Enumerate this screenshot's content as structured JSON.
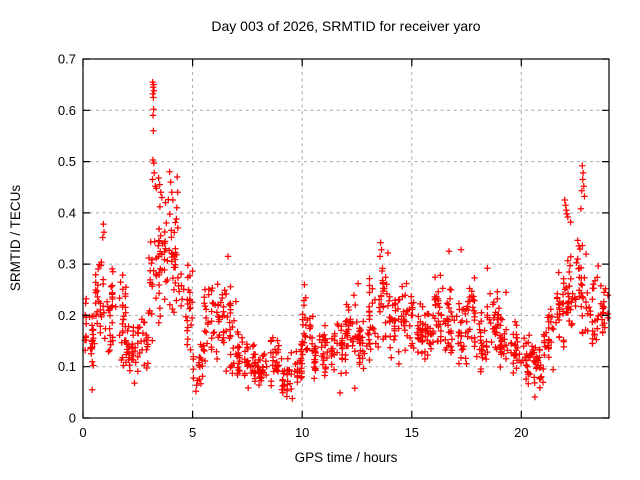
{
  "title": "Day 003 of 2026, SRMTID for receiver yaro",
  "chart_data": {
    "type": "scatter",
    "title": "Day 003 of 2026, SRMTID for receiver yaro",
    "xlabel": "GPS time / hours",
    "ylabel": "SRMTID / TECUs",
    "xlim": [
      0,
      24
    ],
    "ylim": [
      0,
      0.7
    ],
    "xticks": [
      0,
      5,
      10,
      15,
      20
    ],
    "yticks": [
      0,
      0.1,
      0.2,
      0.3,
      0.4,
      0.5,
      0.6,
      0.7
    ],
    "grid": true,
    "legend": "none",
    "marker": "plus",
    "marker_color": "#ff0000",
    "series_name": "SRMTID",
    "seed": 42,
    "distribution_bins": {
      "bin_width_hours": 0.5,
      "description": "dense scatter mass per half-hour bin: [y_min, y_max, point_count]",
      "bins": [
        [
          0.08,
          0.26,
          30
        ],
        [
          0.12,
          0.33,
          28
        ],
        [
          0.12,
          0.3,
          28
        ],
        [
          0.09,
          0.3,
          28
        ],
        [
          0.07,
          0.19,
          26
        ],
        [
          0.08,
          0.22,
          26
        ],
        [
          0.13,
          0.42,
          28
        ],
        [
          0.17,
          0.45,
          28
        ],
        [
          0.18,
          0.4,
          30
        ],
        [
          0.1,
          0.31,
          24
        ],
        [
          0.05,
          0.16,
          22
        ],
        [
          0.1,
          0.3,
          26
        ],
        [
          0.1,
          0.29,
          26
        ],
        [
          0.08,
          0.27,
          26
        ],
        [
          0.06,
          0.17,
          26
        ],
        [
          0.05,
          0.15,
          26
        ],
        [
          0.05,
          0.14,
          26
        ],
        [
          0.06,
          0.16,
          26
        ],
        [
          0.04,
          0.12,
          26
        ],
        [
          0.05,
          0.16,
          26
        ],
        [
          0.08,
          0.25,
          28
        ],
        [
          0.07,
          0.17,
          26
        ],
        [
          0.07,
          0.19,
          26
        ],
        [
          0.08,
          0.21,
          26
        ],
        [
          0.1,
          0.25,
          26
        ],
        [
          0.08,
          0.2,
          26
        ],
        [
          0.1,
          0.28,
          26
        ],
        [
          0.13,
          0.33,
          28
        ],
        [
          0.1,
          0.27,
          26
        ],
        [
          0.11,
          0.28,
          26
        ],
        [
          0.1,
          0.24,
          28
        ],
        [
          0.1,
          0.23,
          26
        ],
        [
          0.11,
          0.3,
          28
        ],
        [
          0.1,
          0.26,
          26
        ],
        [
          0.09,
          0.26,
          26
        ],
        [
          0.11,
          0.31,
          26
        ],
        [
          0.08,
          0.23,
          26
        ],
        [
          0.1,
          0.27,
          26
        ],
        [
          0.07,
          0.2,
          26
        ],
        [
          0.08,
          0.22,
          26
        ],
        [
          0.06,
          0.17,
          26
        ],
        [
          0.05,
          0.16,
          26
        ],
        [
          0.09,
          0.23,
          26
        ],
        [
          0.12,
          0.3,
          28
        ],
        [
          0.14,
          0.32,
          28
        ],
        [
          0.16,
          0.36,
          28
        ],
        [
          0.12,
          0.28,
          26
        ],
        [
          0.13,
          0.3,
          22
        ]
      ]
    },
    "peak_events": {
      "description": "explicit notable points [gps_hour, srmtid_tecu]",
      "points": [
        [
          3.18,
          0.655
        ],
        [
          3.22,
          0.65
        ],
        [
          3.2,
          0.645
        ],
        [
          3.24,
          0.638
        ],
        [
          3.19,
          0.632
        ],
        [
          3.21,
          0.625
        ],
        [
          3.22,
          0.602
        ],
        [
          3.2,
          0.59
        ],
        [
          3.21,
          0.56
        ],
        [
          3.19,
          0.503
        ],
        [
          3.23,
          0.497
        ],
        [
          3.25,
          0.478
        ],
        [
          3.17,
          0.465
        ],
        [
          3.3,
          0.452
        ],
        [
          3.35,
          0.448
        ],
        [
          3.45,
          0.468
        ],
        [
          3.5,
          0.455
        ],
        [
          3.55,
          0.44
        ],
        [
          3.6,
          0.43
        ],
        [
          3.95,
          0.48
        ],
        [
          4.0,
          0.46
        ],
        [
          4.05,
          0.44
        ],
        [
          4.1,
          0.425
        ],
        [
          4.3,
          0.47
        ],
        [
          4.32,
          0.44
        ],
        [
          4.28,
          0.41
        ],
        [
          0.93,
          0.378
        ],
        [
          0.96,
          0.362
        ],
        [
          0.9,
          0.352
        ],
        [
          6.62,
          0.315
        ],
        [
          10.1,
          0.26
        ],
        [
          12.55,
          0.262
        ],
        [
          13.58,
          0.342
        ],
        [
          13.62,
          0.328
        ],
        [
          13.55,
          0.315
        ],
        [
          16.7,
          0.325
        ],
        [
          17.25,
          0.328
        ],
        [
          18.45,
          0.292
        ],
        [
          19.3,
          0.245
        ],
        [
          21.98,
          0.425
        ],
        [
          22.02,
          0.415
        ],
        [
          22.05,
          0.405
        ],
        [
          22.08,
          0.398
        ],
        [
          22.12,
          0.392
        ],
        [
          22.25,
          0.382
        ],
        [
          22.78,
          0.492
        ],
        [
          22.82,
          0.478
        ],
        [
          22.8,
          0.465
        ],
        [
          22.85,
          0.452
        ],
        [
          22.76,
          0.443
        ],
        [
          22.88,
          0.432
        ],
        [
          22.72,
          0.408
        ],
        [
          0.42,
          0.055
        ],
        [
          2.35,
          0.068
        ],
        [
          5.15,
          0.052
        ],
        [
          9.3,
          0.042
        ],
        [
          9.55,
          0.038
        ],
        [
          11.73,
          0.049
        ],
        [
          12.4,
          0.058
        ],
        [
          20.62,
          0.041
        ]
      ]
    },
    "colors": {
      "marker": "#ff0000",
      "grid": "#a8a8a8",
      "axis": "#000000",
      "background": "#ffffff",
      "text": "#000000"
    }
  }
}
